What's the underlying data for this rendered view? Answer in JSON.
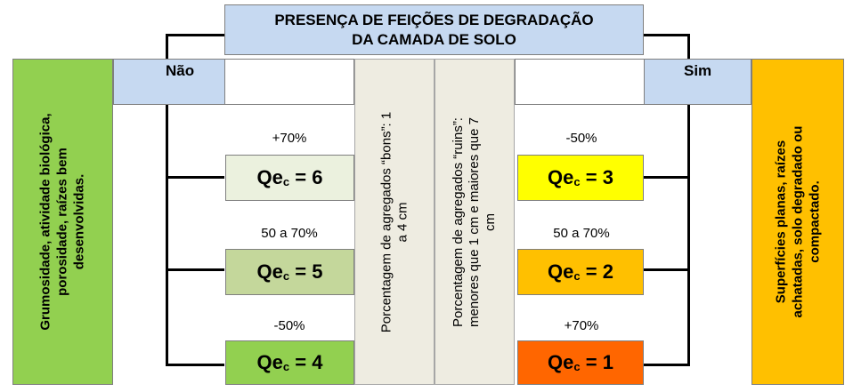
{
  "title": {
    "line1": "PRESENÇA  DE FEIÇÕES DE DEGRADAÇÃO",
    "line2": "DA CAMADA  DE SOLO"
  },
  "left": {
    "answer": "Não",
    "description_line1": "Grumosidade, atividade biológica,",
    "description_line2": "porosidade, raízes bem",
    "description_line3": "desenvolvidas."
  },
  "right": {
    "answer": "Sim",
    "description_line1": "Superfícies planas, raízes",
    "description_line2": "achatadas, solo degradado ou",
    "description_line3": "compactado."
  },
  "middle": {
    "good_line1": "Porcentagem de agregados “bons”: 1",
    "good_line2": "a 4 cm",
    "bad_line1": "Porcentagem de agregados “ruins”:",
    "bad_line2": "menores que 1 cm e maiores que 7",
    "bad_line3": "cm"
  },
  "qe_prefix": "Qe",
  "qe_subscript": "c",
  "left_outcomes": [
    {
      "percent": "+70%",
      "value": "6",
      "color": "#ebf1de"
    },
    {
      "percent": "50 a 70%",
      "value": "5",
      "color": "#c4d79b"
    },
    {
      "percent": "-50%",
      "value": "4",
      "color": "#92d050"
    }
  ],
  "right_outcomes": [
    {
      "percent": "-50%",
      "value": "3",
      "color": "#ffff00"
    },
    {
      "percent": "50 a 70%",
      "value": "2",
      "color": "#ffc000"
    },
    {
      "percent": "+70%",
      "value": "1",
      "color": "#ff6600"
    }
  ],
  "colors": {
    "header_blue": "#c6d9f1",
    "left_panel": "#92d050",
    "right_panel": "#ffc000",
    "middle_panel": "#eeece1"
  }
}
